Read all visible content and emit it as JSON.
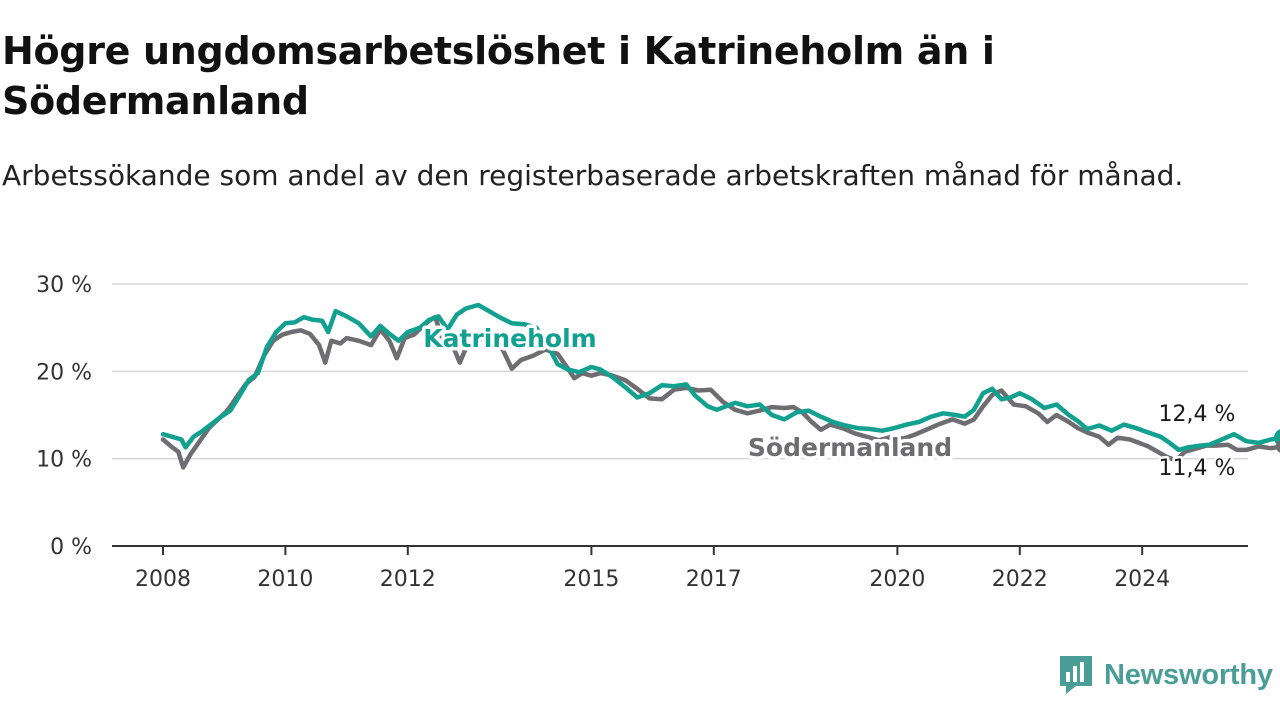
{
  "title": "Högre ungdomsarbetslöshet i Katrineholm än i Södermanland",
  "subtitle": "Arbetssökande som andel av den registerbaserade arbetskraften månad för månad.",
  "brand": {
    "name": "Newsworthy",
    "icon": "newsworthy-logo-icon",
    "color": "#4a9e97"
  },
  "chart_data": {
    "type": "line",
    "y_ticks": [
      "0 %",
      "10 %",
      "20 %",
      "30 %"
    ],
    "y_tick_values": [
      0,
      10,
      20,
      30
    ],
    "ylim": [
      0,
      30
    ],
    "x_ticks": [
      "2008",
      "2010",
      "2012",
      "2015",
      "2017",
      "2020",
      "2022",
      "2024"
    ],
    "x_tick_values": [
      2008,
      2010,
      2012,
      2015,
      2017,
      2020,
      2022,
      2024
    ],
    "xlim": [
      2007.2,
      2025.7
    ],
    "grid": true,
    "series": [
      {
        "name": "Södermanland",
        "color": "#6e6e72",
        "end_label": "11,4 %",
        "end_value": 11.4,
        "points": [
          [
            2008.0,
            12.2
          ],
          [
            2008.15,
            11.3
          ],
          [
            2008.25,
            10.8
          ],
          [
            2008.33,
            9.0
          ],
          [
            2008.45,
            10.5
          ],
          [
            2008.6,
            12.0
          ],
          [
            2008.75,
            13.5
          ],
          [
            2008.9,
            14.5
          ],
          [
            2009.05,
            15.5
          ],
          [
            2009.2,
            17.0
          ],
          [
            2009.35,
            18.5
          ],
          [
            2009.5,
            19.4
          ],
          [
            2009.65,
            21.8
          ],
          [
            2009.8,
            23.5
          ],
          [
            2009.95,
            24.2
          ],
          [
            2010.1,
            24.5
          ],
          [
            2010.25,
            24.7
          ],
          [
            2010.4,
            24.3
          ],
          [
            2010.55,
            23.0
          ],
          [
            2010.65,
            21.0
          ],
          [
            2010.75,
            23.5
          ],
          [
            2010.9,
            23.2
          ],
          [
            2011.0,
            23.8
          ],
          [
            2011.2,
            23.5
          ],
          [
            2011.4,
            23.0
          ],
          [
            2011.55,
            24.8
          ],
          [
            2011.7,
            23.5
          ],
          [
            2011.82,
            21.5
          ],
          [
            2011.95,
            23.8
          ],
          [
            2012.1,
            24.2
          ],
          [
            2012.25,
            25.2
          ],
          [
            2012.35,
            25.8
          ],
          [
            2012.45,
            26.2
          ],
          [
            2012.55,
            24.0
          ],
          [
            2012.7,
            23.5
          ],
          [
            2012.85,
            21.0
          ],
          [
            2013.0,
            23.5
          ],
          [
            2013.25,
            23.8
          ],
          [
            2013.55,
            22.5
          ],
          [
            2013.7,
            20.3
          ],
          [
            2013.85,
            21.3
          ],
          [
            2014.05,
            21.8
          ],
          [
            2014.25,
            22.5
          ],
          [
            2014.45,
            22.0
          ],
          [
            2014.6,
            20.5
          ],
          [
            2014.72,
            19.2
          ],
          [
            2014.85,
            19.8
          ],
          [
            2015.0,
            19.5
          ],
          [
            2015.15,
            19.8
          ],
          [
            2015.35,
            19.5
          ],
          [
            2015.55,
            19.0
          ],
          [
            2015.75,
            18.0
          ],
          [
            2015.95,
            16.9
          ],
          [
            2016.15,
            16.8
          ],
          [
            2016.35,
            17.9
          ],
          [
            2016.55,
            18.1
          ],
          [
            2016.75,
            17.8
          ],
          [
            2016.95,
            17.9
          ],
          [
            2017.15,
            16.5
          ],
          [
            2017.35,
            15.6
          ],
          [
            2017.55,
            15.2
          ],
          [
            2017.75,
            15.5
          ],
          [
            2017.95,
            15.9
          ],
          [
            2018.15,
            15.8
          ],
          [
            2018.3,
            15.9
          ],
          [
            2018.45,
            15.3
          ],
          [
            2018.6,
            14.2
          ],
          [
            2018.75,
            13.3
          ],
          [
            2018.9,
            13.9
          ],
          [
            2019.1,
            13.5
          ],
          [
            2019.3,
            12.9
          ],
          [
            2019.5,
            12.5
          ],
          [
            2019.7,
            12.1
          ],
          [
            2019.9,
            12.5
          ],
          [
            2020.1,
            12.3
          ],
          [
            2020.3,
            12.8
          ],
          [
            2020.5,
            13.4
          ],
          [
            2020.7,
            14.0
          ],
          [
            2020.9,
            14.5
          ],
          [
            2021.1,
            14.0
          ],
          [
            2021.25,
            14.5
          ],
          [
            2021.4,
            16.0
          ],
          [
            2021.55,
            17.3
          ],
          [
            2021.7,
            17.8
          ],
          [
            2021.9,
            16.2
          ],
          [
            2022.1,
            16.0
          ],
          [
            2022.3,
            15.2
          ],
          [
            2022.45,
            14.2
          ],
          [
            2022.6,
            15.0
          ],
          [
            2022.8,
            14.2
          ],
          [
            2022.95,
            13.5
          ],
          [
            2023.1,
            13.0
          ],
          [
            2023.3,
            12.5
          ],
          [
            2023.45,
            11.6
          ],
          [
            2023.6,
            12.4
          ],
          [
            2023.8,
            12.2
          ],
          [
            2023.95,
            11.8
          ],
          [
            2024.1,
            11.4
          ],
          [
            2024.25,
            10.8
          ],
          [
            2024.4,
            10.2
          ],
          [
            2024.55,
            9.8
          ],
          [
            2024.7,
            10.8
          ],
          [
            2024.9,
            11.2
          ],
          [
            2025.05,
            11.5
          ],
          [
            2025.2,
            11.5
          ],
          [
            2025.4,
            11.6
          ],
          [
            2025.55,
            11.0
          ],
          [
            2025.7,
            11.0
          ],
          [
            2025.9,
            11.4
          ],
          [
            2026.1,
            11.2
          ],
          [
            2026.3,
            11.4
          ]
        ]
      },
      {
        "name": "Katrineholm",
        "color": "#12a191",
        "end_label": "12,4 %",
        "end_value": 12.4,
        "points": [
          [
            2008.0,
            12.8
          ],
          [
            2008.15,
            12.5
          ],
          [
            2008.3,
            12.2
          ],
          [
            2008.37,
            11.3
          ],
          [
            2008.5,
            12.5
          ],
          [
            2008.65,
            13.2
          ],
          [
            2008.8,
            14.0
          ],
          [
            2008.95,
            14.8
          ],
          [
            2009.1,
            15.5
          ],
          [
            2009.25,
            17.2
          ],
          [
            2009.4,
            19.0
          ],
          [
            2009.55,
            19.8
          ],
          [
            2009.7,
            22.8
          ],
          [
            2009.85,
            24.5
          ],
          [
            2010.0,
            25.5
          ],
          [
            2010.15,
            25.6
          ],
          [
            2010.3,
            26.2
          ],
          [
            2010.45,
            25.9
          ],
          [
            2010.6,
            25.8
          ],
          [
            2010.7,
            24.5
          ],
          [
            2010.82,
            26.9
          ],
          [
            2011.0,
            26.3
          ],
          [
            2011.2,
            25.5
          ],
          [
            2011.4,
            24.0
          ],
          [
            2011.55,
            25.2
          ],
          [
            2011.7,
            24.3
          ],
          [
            2011.85,
            23.5
          ],
          [
            2012.0,
            24.5
          ],
          [
            2012.2,
            25.0
          ],
          [
            2012.35,
            25.9
          ],
          [
            2012.5,
            26.3
          ],
          [
            2012.65,
            24.8
          ],
          [
            2012.8,
            26.5
          ],
          [
            2012.95,
            27.2
          ],
          [
            2013.15,
            27.6
          ],
          [
            2013.3,
            27.0
          ],
          [
            2013.5,
            26.2
          ],
          [
            2013.7,
            25.5
          ],
          [
            2013.9,
            25.4
          ],
          [
            2014.1,
            25.0
          ],
          [
            2014.3,
            22.8
          ],
          [
            2014.45,
            20.8
          ],
          [
            2014.62,
            20.2
          ],
          [
            2014.8,
            19.9
          ],
          [
            2015.0,
            20.5
          ],
          [
            2015.15,
            20.2
          ],
          [
            2015.35,
            19.3
          ],
          [
            2015.55,
            18.2
          ],
          [
            2015.75,
            17.0
          ],
          [
            2015.95,
            17.5
          ],
          [
            2016.15,
            18.4
          ],
          [
            2016.35,
            18.3
          ],
          [
            2016.55,
            18.5
          ],
          [
            2016.7,
            17.2
          ],
          [
            2016.9,
            16.0
          ],
          [
            2017.05,
            15.6
          ],
          [
            2017.2,
            16.0
          ],
          [
            2017.35,
            16.4
          ],
          [
            2017.55,
            16.0
          ],
          [
            2017.75,
            16.2
          ],
          [
            2017.95,
            15.0
          ],
          [
            2018.15,
            14.5
          ],
          [
            2018.35,
            15.3
          ],
          [
            2018.55,
            15.5
          ],
          [
            2018.75,
            14.8
          ],
          [
            2018.95,
            14.2
          ],
          [
            2019.15,
            13.8
          ],
          [
            2019.35,
            13.5
          ],
          [
            2019.55,
            13.4
          ],
          [
            2019.75,
            13.2
          ],
          [
            2019.95,
            13.5
          ],
          [
            2020.15,
            13.9
          ],
          [
            2020.35,
            14.2
          ],
          [
            2020.55,
            14.8
          ],
          [
            2020.75,
            15.2
          ],
          [
            2020.95,
            15.0
          ],
          [
            2021.1,
            14.8
          ],
          [
            2021.25,
            15.6
          ],
          [
            2021.4,
            17.5
          ],
          [
            2021.55,
            18.0
          ],
          [
            2021.7,
            16.8
          ],
          [
            2021.85,
            17.0
          ],
          [
            2022.0,
            17.5
          ],
          [
            2022.2,
            16.8
          ],
          [
            2022.4,
            15.8
          ],
          [
            2022.6,
            16.2
          ],
          [
            2022.8,
            15.0
          ],
          [
            2022.95,
            14.3
          ],
          [
            2023.1,
            13.4
          ],
          [
            2023.3,
            13.8
          ],
          [
            2023.5,
            13.2
          ],
          [
            2023.7,
            13.9
          ],
          [
            2023.9,
            13.5
          ],
          [
            2024.1,
            13.0
          ],
          [
            2024.3,
            12.5
          ],
          [
            2024.45,
            11.8
          ],
          [
            2024.6,
            11.0
          ],
          [
            2024.75,
            11.3
          ],
          [
            2024.95,
            11.5
          ],
          [
            2025.1,
            11.6
          ],
          [
            2025.3,
            12.2
          ],
          [
            2025.5,
            12.8
          ],
          [
            2025.7,
            12.0
          ],
          [
            2025.9,
            11.8
          ],
          [
            2026.1,
            12.2
          ],
          [
            2026.3,
            12.4
          ]
        ]
      }
    ]
  }
}
